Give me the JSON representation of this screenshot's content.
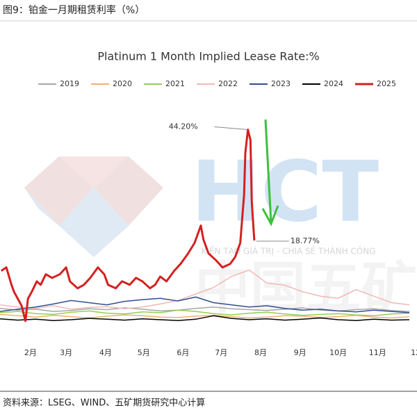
{
  "header": {
    "title": "图9：铂金一月期租赁利率（%）"
  },
  "watermark": {
    "logo": "HCT",
    "slogan": "KIẾN TẠO GIÁ TRỊ - CHIA SẺ THÀNH CÔNG",
    "background": "中国五矿"
  },
  "chart_data": {
    "type": "line",
    "title": "Platinum 1 Month Implied Lease Rate:%",
    "x": [
      8,
      22,
      36,
      50,
      64,
      78,
      92,
      106,
      120,
      134,
      148,
      162,
      176,
      190,
      204,
      218,
      232,
      246,
      260,
      274,
      288,
      302,
      316,
      330
    ],
    "xlim": [
      8,
      336
    ],
    "xticks": [
      {
        "value": 32,
        "label": "2月"
      },
      {
        "value": 60,
        "label": "3月"
      },
      {
        "value": 91,
        "label": "4月"
      },
      {
        "value": 121,
        "label": "5月"
      },
      {
        "value": 152,
        "label": "6月"
      },
      {
        "value": 182,
        "label": "7月"
      },
      {
        "value": 213,
        "label": "8月"
      },
      {
        "value": 244,
        "label": "9月"
      },
      {
        "value": 274,
        "label": "10月"
      },
      {
        "value": 305,
        "label": "11月"
      },
      {
        "value": 335,
        "label": "12"
      }
    ],
    "ylim": [
      -1,
      58
    ],
    "series": [
      {
        "name": "2019",
        "color": "#a6a6a6",
        "values": [
          3.2,
          2.8,
          3.0,
          2.5,
          2.7,
          3.1,
          2.9,
          3.3,
          3.0,
          2.6,
          2.8,
          3.2,
          3.5,
          3.1,
          2.9,
          2.7,
          3.0,
          3.3,
          2.8,
          2.6,
          2.9,
          3.1,
          2.7,
          2.5
        ]
      },
      {
        "name": "2020",
        "color": "#f0b070",
        "values": [
          1.8,
          1.5,
          1.2,
          1.6,
          1.3,
          1.0,
          1.4,
          1.7,
          1.5,
          1.2,
          1.1,
          1.4,
          1.6,
          1.3,
          1.0,
          1.2,
          1.5,
          1.4,
          1.1,
          1.3,
          1.6,
          1.2,
          1.0,
          1.3
        ]
      },
      {
        "name": "2021",
        "color": "#92d050",
        "values": [
          2.2,
          2.5,
          2.0,
          1.8,
          2.3,
          2.6,
          2.1,
          1.9,
          2.4,
          2.2,
          2.8,
          2.5,
          2.0,
          1.7,
          2.1,
          2.3,
          1.9,
          1.6,
          1.8,
          2.0,
          1.7,
          1.5,
          1.9,
          2.1
        ]
      },
      {
        "name": "2022",
        "color": "#f2b8b8",
        "values": [
          4.0,
          3.5,
          3.2,
          3.8,
          3.0,
          3.4,
          3.6,
          3.1,
          3.5,
          4.2,
          5.0,
          6.5,
          8.0,
          10.5,
          12.0,
          9.0,
          8.5,
          7.0,
          6.0,
          5.5,
          7.5,
          6.0,
          4.5,
          4.0
        ]
      },
      {
        "name": "2023",
        "color": "#2f4f8f",
        "values": [
          2.5,
          3.0,
          3.5,
          4.2,
          5.0,
          4.5,
          4.0,
          4.8,
          5.2,
          5.5,
          4.9,
          5.8,
          4.5,
          4.0,
          3.5,
          3.8,
          3.2,
          2.8,
          3.0,
          2.6,
          2.4,
          2.8,
          2.5,
          2.2
        ]
      },
      {
        "name": "2024",
        "color": "#000000",
        "values": [
          0.8,
          0.5,
          0.7,
          0.4,
          0.6,
          0.9,
          0.7,
          0.5,
          0.8,
          0.6,
          0.4,
          0.7,
          1.5,
          0.9,
          0.6,
          0.8,
          0.5,
          0.7,
          1.0,
          0.6,
          0.4,
          0.7,
          0.5,
          0.6
        ]
      },
      {
        "name": "2025",
        "color": "#d42020",
        "width": 3,
        "x": [
          9,
          13,
          17,
          19,
          25,
          28,
          30,
          33,
          37,
          40,
          44,
          49,
          55,
          60,
          63,
          69,
          74,
          79,
          85,
          90,
          93,
          99,
          104,
          110,
          115,
          120,
          126,
          130,
          134,
          139,
          145,
          150,
          156,
          161,
          166,
          168,
          172,
          178,
          183,
          189,
          193,
          197,
          200,
          201,
          203,
          205,
          206,
          208
        ],
        "values": [
          11.8,
          12.6,
          8.6,
          7.0,
          3.8,
          0.3,
          5.4,
          7.0,
          9.4,
          8.6,
          11.0,
          10.2,
          11.0,
          12.6,
          9.4,
          7.8,
          8.6,
          10.2,
          12.6,
          11.0,
          8.6,
          7.8,
          9.4,
          8.6,
          10.2,
          9.4,
          7.8,
          8.6,
          10.5,
          9.4,
          11.8,
          13.4,
          15.8,
          18.2,
          22.2,
          19.0,
          15.8,
          14.2,
          12.6,
          13.4,
          15.0,
          18.2,
          29.3,
          38.9,
          44.2,
          41.8,
          27.8,
          18.77
        ]
      }
    ],
    "annotations": [
      {
        "text": "44.20%",
        "series": 6,
        "index": 44
      },
      {
        "text": "18.77%",
        "series": 6,
        "index": 47
      }
    ]
  },
  "footer": {
    "source": "资料来源：LSEG、WIND、五矿期货研究中心计算"
  }
}
